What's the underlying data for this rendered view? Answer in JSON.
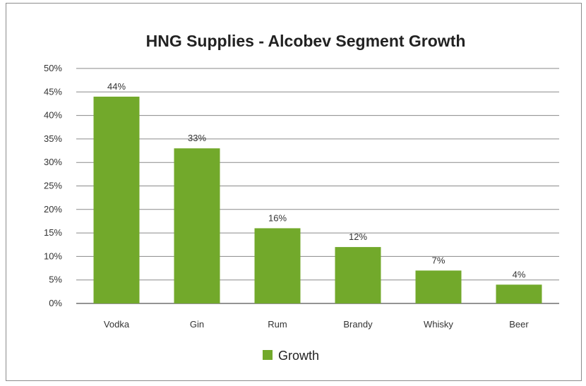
{
  "chart_data": {
    "type": "bar",
    "title": "HNG Supplies - Alcobev Segment Growth",
    "categories": [
      "Vodka",
      "Gin",
      "Rum",
      "Brandy",
      "Whisky",
      "Beer"
    ],
    "series": [
      {
        "name": "Growth",
        "values": [
          44,
          33,
          16,
          12,
          7,
          4
        ],
        "color": "#72a92b"
      }
    ],
    "data_labels": [
      "44%",
      "33%",
      "16%",
      "12%",
      "7%",
      "4%"
    ],
    "ylim": [
      0,
      50
    ],
    "yticks": [
      "0%",
      "5%",
      "10%",
      "15%",
      "20%",
      "25%",
      "30%",
      "35%",
      "40%",
      "45%",
      "50%"
    ],
    "grid": true,
    "legend": "bottom",
    "xlabel": "",
    "ylabel": ""
  }
}
